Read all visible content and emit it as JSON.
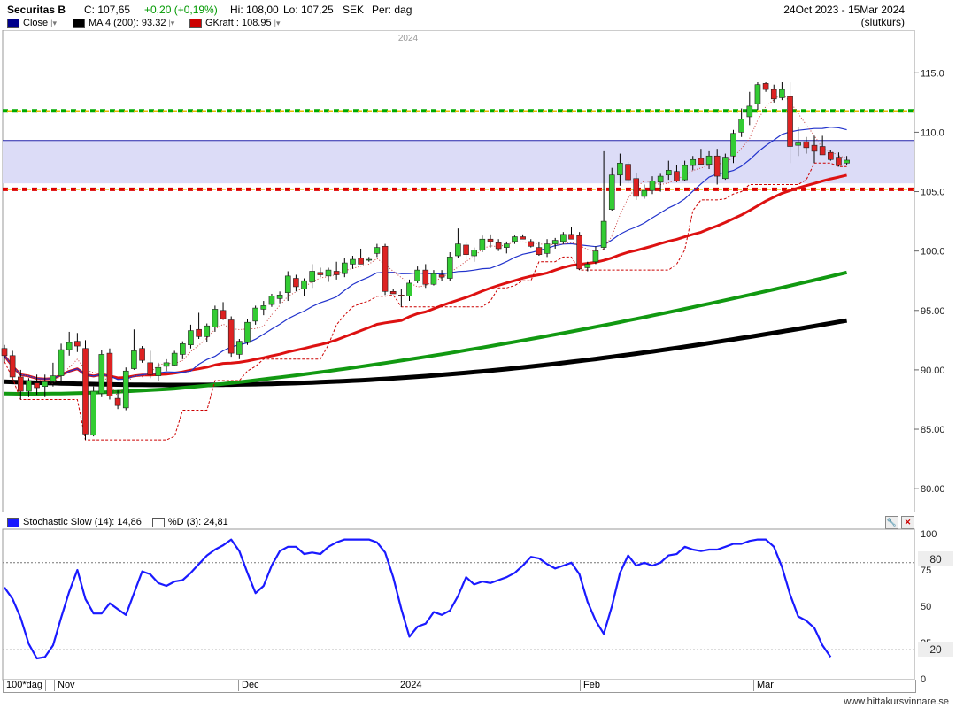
{
  "header": {
    "instrument": "Securitas B",
    "close_text": "C: 107,65",
    "change_text": "+0,20 (+0,19%)",
    "hi_text": "Hi: 108,00",
    "lo_text": "Lo: 107,25",
    "currency": "SEK",
    "period": "Per: dag",
    "date_range": "24Oct 2023 - 15Mar 2024",
    "price_type": "(slutkurs)"
  },
  "legend": [
    {
      "label": "Close",
      "color": "#00008b"
    },
    {
      "label": "MA 4 (200): 93.32",
      "color": "#000000"
    },
    {
      "label": "GKraft : 108.95",
      "color": "#cc0000"
    }
  ],
  "year_label": "2024",
  "lower": {
    "title": "Stochastic Slow (14): 14,86",
    "title2": "%D (3): 24,81",
    "level_high_label": "80",
    "level_low_label": "20"
  },
  "footer": {
    "zoom": "100*dag",
    "watermark": "www.hittakursvinnare.se"
  },
  "colors": {
    "up": "#33cc33",
    "down": "#dd2222",
    "band_fill": "#dcdcf7",
    "ma_blue": "#2233cc",
    "ma_red": "#dd1111",
    "ma_green": "#119911",
    "ma_black": "#000000",
    "stoch": "#1a1aff"
  },
  "chart_data": [
    {
      "type": "candlestick",
      "x_labels": [
        "Nov",
        "Dec",
        "2024",
        "Feb",
        "Mar"
      ],
      "ylim": [
        78,
        118
      ],
      "yticks": [
        "80.00",
        "85.00",
        "90.00",
        "95.00",
        "100.0",
        "105.0",
        "110.0",
        "115.0"
      ],
      "horizontal_levels": {
        "band_top": 109.3,
        "band_bottom": 105.7,
        "green_dashed": 111.8,
        "red_dashed": 105.2
      },
      "candles": [
        [
          91.8,
          92.1,
          90.7,
          91.2
        ],
        [
          91.2,
          91.6,
          89.3,
          89.4
        ],
        [
          89.4,
          90.0,
          87.5,
          88.2
        ],
        [
          88.2,
          89.3,
          87.7,
          89.1
        ],
        [
          88.9,
          89.6,
          87.9,
          88.5
        ],
        [
          88.6,
          89.6,
          87.7,
          89.0
        ],
        [
          89.0,
          90.6,
          88.6,
          89.5
        ],
        [
          89.5,
          92.2,
          89.0,
          91.7
        ],
        [
          91.7,
          93.2,
          91.2,
          92.3
        ],
        [
          92.4,
          93.1,
          91.5,
          92.0
        ],
        [
          91.8,
          92.5,
          84.1,
          84.6
        ],
        [
          84.5,
          88.6,
          84.4,
          88.2
        ],
        [
          88.0,
          91.7,
          87.7,
          91.3
        ],
        [
          91.4,
          91.8,
          87.5,
          87.8
        ],
        [
          87.6,
          88.3,
          86.7,
          87.0
        ],
        [
          86.8,
          90.2,
          86.6,
          89.9
        ],
        [
          90.1,
          93.4,
          90.0,
          91.6
        ],
        [
          91.8,
          92.0,
          90.6,
          90.8
        ],
        [
          90.6,
          91.6,
          89.3,
          89.6
        ],
        [
          89.5,
          90.6,
          89.1,
          90.2
        ],
        [
          90.3,
          90.9,
          89.9,
          90.6
        ],
        [
          90.4,
          91.6,
          90.3,
          91.4
        ],
        [
          91.3,
          92.4,
          90.9,
          92.2
        ],
        [
          92.1,
          93.8,
          91.8,
          93.3
        ],
        [
          93.4,
          94.8,
          92.6,
          92.8
        ],
        [
          92.8,
          93.9,
          92.3,
          93.7
        ],
        [
          93.6,
          95.4,
          93.2,
          95.1
        ],
        [
          95.0,
          95.7,
          94.2,
          94.3
        ],
        [
          94.2,
          94.5,
          91.1,
          91.4
        ],
        [
          91.3,
          92.6,
          90.9,
          92.4
        ],
        [
          92.3,
          94.3,
          92.1,
          94.0
        ],
        [
          94.1,
          95.4,
          93.8,
          95.2
        ],
        [
          95.1,
          95.8,
          94.6,
          95.4
        ],
        [
          95.5,
          96.4,
          95.3,
          96.2
        ],
        [
          96.0,
          96.6,
          95.6,
          96.3
        ],
        [
          96.5,
          98.3,
          95.8,
          97.9
        ],
        [
          97.7,
          98.0,
          96.6,
          97.0
        ],
        [
          96.8,
          97.7,
          96.2,
          97.5
        ],
        [
          97.4,
          98.9,
          96.9,
          98.3
        ],
        [
          98.2,
          98.6,
          97.8,
          98.0
        ],
        [
          97.9,
          98.6,
          97.4,
          98.4
        ],
        [
          98.3,
          99.1,
          97.6,
          98.0
        ],
        [
          98.1,
          99.4,
          97.8,
          99.0
        ],
        [
          98.9,
          99.6,
          98.5,
          99.3
        ],
        [
          99.4,
          100.2,
          98.9,
          98.9
        ],
        [
          99.3,
          99.5,
          99.1,
          99.3
        ],
        [
          99.8,
          100.6,
          99.5,
          100.3
        ],
        [
          100.4,
          100.6,
          96.3,
          96.6
        ],
        [
          96.6,
          96.8,
          96.4,
          96.4
        ],
        [
          96.3,
          96.8,
          95.3,
          96.2
        ],
        [
          96.2,
          97.6,
          95.8,
          97.3
        ],
        [
          97.5,
          98.7,
          97.3,
          98.4
        ],
        [
          98.4,
          98.9,
          96.9,
          97.2
        ],
        [
          97.2,
          98.4,
          97.1,
          98.1
        ],
        [
          98.0,
          98.4,
          97.5,
          97.8
        ],
        [
          97.7,
          99.9,
          97.5,
          99.5
        ],
        [
          99.6,
          101.9,
          99.4,
          100.6
        ],
        [
          100.5,
          100.8,
          99.3,
          99.7
        ],
        [
          99.6,
          100.3,
          99.1,
          100.1
        ],
        [
          100.1,
          101.3,
          99.9,
          101.0
        ],
        [
          101.0,
          101.4,
          100.3,
          100.8
        ],
        [
          100.7,
          101.0,
          100.0,
          100.2
        ],
        [
          100.3,
          100.8,
          99.8,
          100.6
        ],
        [
          100.8,
          101.3,
          100.6,
          101.2
        ],
        [
          101.2,
          101.4,
          101.0,
          101.0
        ],
        [
          100.8,
          101.0,
          100.3,
          100.4
        ],
        [
          100.3,
          100.8,
          99.6,
          99.7
        ],
        [
          99.8,
          101.0,
          99.5,
          100.6
        ],
        [
          100.6,
          101.1,
          100.2,
          100.9
        ],
        [
          100.8,
          101.6,
          100.6,
          101.4
        ],
        [
          101.4,
          102.0,
          101.0,
          101.0
        ],
        [
          101.3,
          101.6,
          98.4,
          98.5
        ],
        [
          98.6,
          99.1,
          98.3,
          98.9
        ],
        [
          99.1,
          100.4,
          98.9,
          100.0
        ],
        [
          100.3,
          108.4,
          100.1,
          102.5
        ],
        [
          103.5,
          107.0,
          103.4,
          106.4
        ],
        [
          106.4,
          108.2,
          105.5,
          107.4
        ],
        [
          107.3,
          107.5,
          105.7,
          106.0
        ],
        [
          106.1,
          106.6,
          104.3,
          104.6
        ],
        [
          104.6,
          105.6,
          104.4,
          105.1
        ],
        [
          105.1,
          106.3,
          104.8,
          105.9
        ],
        [
          105.8,
          106.5,
          105.0,
          106.3
        ],
        [
          106.4,
          107.6,
          106.0,
          106.8
        ],
        [
          106.7,
          107.2,
          105.8,
          105.9
        ],
        [
          106.0,
          107.6,
          105.9,
          107.2
        ],
        [
          107.2,
          108.0,
          106.8,
          107.7
        ],
        [
          107.8,
          108.6,
          107.2,
          107.3
        ],
        [
          107.3,
          108.4,
          106.9,
          108.0
        ],
        [
          108.0,
          108.6,
          105.6,
          106.3
        ],
        [
          106.1,
          108.2,
          106.0,
          107.9
        ],
        [
          108.0,
          110.2,
          107.4,
          109.9
        ],
        [
          110.0,
          112.0,
          109.6,
          111.1
        ],
        [
          111.3,
          113.4,
          110.6,
          112.2
        ],
        [
          112.4,
          114.2,
          111.9,
          114.0
        ],
        [
          114.1,
          114.2,
          113.4,
          113.6
        ],
        [
          113.6,
          114.0,
          112.5,
          112.8
        ],
        [
          112.9,
          114.2,
          112.7,
          113.6
        ],
        [
          113.0,
          114.2,
          107.4,
          108.8
        ],
        [
          108.9,
          110.4,
          108.0,
          109.1
        ],
        [
          109.2,
          109.6,
          108.2,
          108.7
        ],
        [
          108.9,
          109.7,
          107.4,
          108.4
        ],
        [
          108.8,
          109.7,
          108.4,
          108.1
        ],
        [
          108.3,
          108.5,
          107.6,
          107.7
        ],
        [
          107.9,
          108.3,
          107.1,
          107.2
        ],
        [
          107.4,
          108.0,
          107.25,
          107.65
        ]
      ]
    },
    {
      "type": "line",
      "ylim": [
        0,
        100
      ],
      "yticks": [
        "0",
        "25",
        "50",
        "75",
        "100"
      ],
      "series": [
        {
          "values": [
            63,
            55,
            42,
            24,
            14,
            15,
            23,
            42,
            60,
            75,
            55,
            45,
            45,
            52,
            48,
            44,
            59,
            74,
            72,
            66,
            64,
            67,
            68,
            73,
            79,
            85,
            89,
            92,
            96,
            88,
            73,
            59,
            64,
            78,
            88,
            91,
            91,
            86,
            87,
            86,
            91,
            94,
            96,
            96,
            96,
            96,
            94,
            87,
            70,
            48,
            29,
            36,
            38,
            46,
            44,
            47,
            57,
            70,
            65,
            67,
            66,
            68,
            70,
            73,
            78,
            84,
            83,
            79,
            76,
            78,
            80,
            72,
            53,
            40,
            31,
            50,
            73,
            85,
            78,
            80,
            78,
            80,
            85,
            86,
            91,
            89,
            88,
            89,
            89,
            91,
            93,
            93,
            95,
            96,
            96,
            91,
            77,
            58,
            43,
            40,
            35,
            23,
            15
          ]
        }
      ]
    }
  ]
}
